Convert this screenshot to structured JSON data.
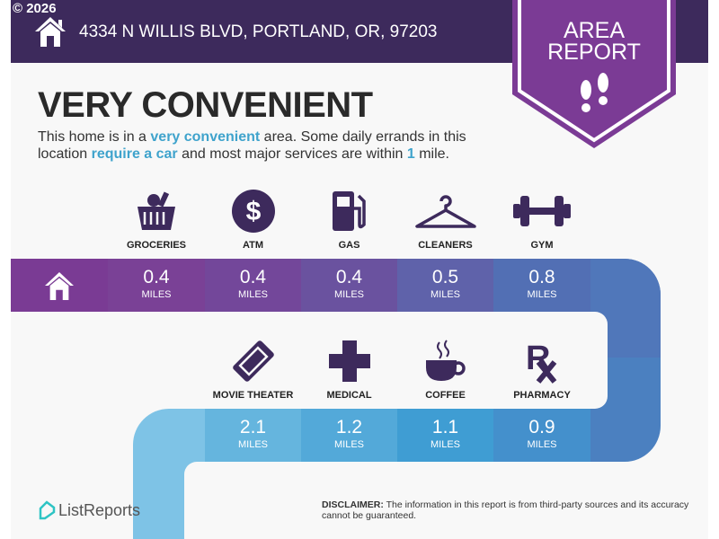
{
  "copyright": "© 2026",
  "address": "4334 N WILLIS BLVD, PORTLAND, OR, 97203",
  "badge": {
    "line1": "AREA",
    "line2": "REPORT"
  },
  "title": "VERY CONVENIENT",
  "description": {
    "p1": "This home is in a ",
    "h1": "very convenient",
    "p2": " area. Some daily errands in this location ",
    "h2": "require a car",
    "p3": " and most major services are within ",
    "h3": "1",
    "p4": " mile."
  },
  "unit": "MILES",
  "top_row": [
    {
      "label": "GROCERIES",
      "distance": "0.4",
      "icon": "grocery-basket-icon"
    },
    {
      "label": "ATM",
      "distance": "0.4",
      "icon": "dollar-icon"
    },
    {
      "label": "GAS",
      "distance": "0.4",
      "icon": "gas-pump-icon"
    },
    {
      "label": "CLEANERS",
      "distance": "0.5",
      "icon": "hanger-icon"
    },
    {
      "label": "GYM",
      "distance": "0.8",
      "icon": "dumbbell-icon"
    }
  ],
  "bottom_row": [
    {
      "label": "MOVIE THEATER",
      "distance": "2.1",
      "icon": "ticket-icon"
    },
    {
      "label": "MEDICAL",
      "distance": "1.2",
      "icon": "medical-cross-icon"
    },
    {
      "label": "COFFEE",
      "distance": "1.1",
      "icon": "coffee-cup-icon"
    },
    {
      "label": "PHARMACY",
      "distance": "0.9",
      "icon": "rx-icon"
    }
  ],
  "colors": {
    "header": "#3d2a5c",
    "badge": "#7b3b95",
    "accent": "#3fa3cc",
    "icon": "#3d2a5c"
  },
  "disclaimer": {
    "label": "DISCLAIMER:",
    "text": " The information in this report is from third-party sources and its accuracy cannot be guaranteed."
  },
  "logo": "ListReports"
}
